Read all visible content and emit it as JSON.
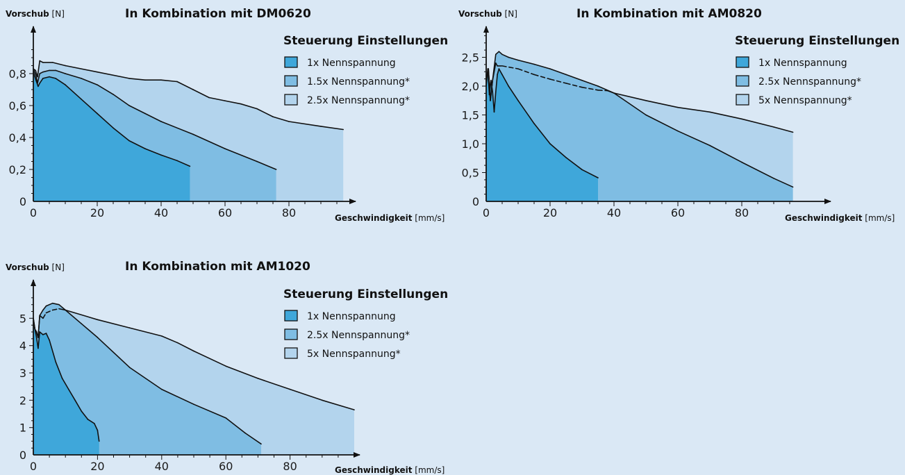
{
  "chart_data": [
    {
      "type": "area",
      "title": "In Kombination mit DM0620",
      "ylabel_bold": "Vorschub",
      "ylabel_unit": "[N]",
      "xlabel_bold": "Geschwindigkeit",
      "xlabel_unit": "[mm/s]",
      "xlim": [
        0,
        100
      ],
      "ylim": [
        0,
        1.0
      ],
      "xticks": [
        0,
        20,
        40,
        60,
        80
      ],
      "xtick_labels": [
        "0",
        "20",
        "40",
        "60",
        "80"
      ],
      "yticks": [
        0,
        0.2,
        0.4,
        0.6,
        0.8
      ],
      "ytick_labels": [
        "0",
        "0,2",
        "0,4",
        "0,6",
        "0,8"
      ],
      "legend_title": "Steuerung Einstellungen",
      "legend_position": "top-right",
      "series": [
        {
          "name": "1x Nennspannung",
          "color": "#3fa7da",
          "dashed_ranges": [],
          "points": [
            [
              0,
              0.81
            ],
            [
              0.8,
              0.76
            ],
            [
              1.5,
              0.72
            ],
            [
              2,
              0.74
            ],
            [
              3,
              0.77
            ],
            [
              5,
              0.78
            ],
            [
              7,
              0.77
            ],
            [
              10,
              0.73
            ],
            [
              15,
              0.64
            ],
            [
              20,
              0.55
            ],
            [
              25,
              0.46
            ],
            [
              30,
              0.38
            ],
            [
              35,
              0.33
            ],
            [
              40,
              0.29
            ],
            [
              45,
              0.255
            ],
            [
              49,
              0.22
            ]
          ]
        },
        {
          "name": "1.5x Nennspannung*",
          "color": "#7fbde3",
          "dashed_ranges": [],
          "points": [
            [
              0,
              0.83
            ],
            [
              0.8,
              0.79
            ],
            [
              1.3,
              0.74
            ],
            [
              2,
              0.8
            ],
            [
              3,
              0.81
            ],
            [
              5,
              0.82
            ],
            [
              7,
              0.82
            ],
            [
              10,
              0.8
            ],
            [
              15,
              0.77
            ],
            [
              20,
              0.73
            ],
            [
              25,
              0.67
            ],
            [
              30,
              0.6
            ],
            [
              35,
              0.55
            ],
            [
              40,
              0.5
            ],
            [
              50,
              0.42
            ],
            [
              60,
              0.33
            ],
            [
              70,
              0.25
            ],
            [
              76,
              0.2
            ]
          ]
        },
        {
          "name": "2.5x Nennspannung*",
          "color": "#b3d4ed",
          "dashed_ranges": [],
          "points": [
            [
              0,
              0.83
            ],
            [
              0.7,
              0.82
            ],
            [
              1.3,
              0.78
            ],
            [
              2,
              0.88
            ],
            [
              3,
              0.87
            ],
            [
              6,
              0.87
            ],
            [
              10,
              0.85
            ],
            [
              20,
              0.81
            ],
            [
              30,
              0.77
            ],
            [
              35,
              0.76
            ],
            [
              40,
              0.76
            ],
            [
              45,
              0.75
            ],
            [
              50,
              0.7
            ],
            [
              55,
              0.65
            ],
            [
              60,
              0.63
            ],
            [
              65,
              0.61
            ],
            [
              70,
              0.58
            ],
            [
              75,
              0.53
            ],
            [
              80,
              0.5
            ],
            [
              90,
              0.47
            ],
            [
              97,
              0.45
            ]
          ]
        }
      ]
    },
    {
      "type": "area",
      "title": "In Kombination mit AM0820",
      "ylabel_bold": "Vorschub",
      "ylabel_unit": "[N]",
      "xlabel_bold": "Geschwindigkeit",
      "xlabel_unit": "[mm/s]",
      "xlim": [
        0,
        100
      ],
      "ylim": [
        0,
        3.0
      ],
      "xticks": [
        0,
        20,
        40,
        60,
        80
      ],
      "xtick_labels": [
        "0",
        "20",
        "40",
        "60",
        "80"
      ],
      "yticks": [
        0,
        0.5,
        1.0,
        1.5,
        2.0,
        2.5
      ],
      "ytick_labels": [
        "0",
        "0,5",
        "1,0",
        "1,5",
        "2,0",
        "2,5"
      ],
      "legend_title": "Steuerung Einstellungen",
      "legend_position": "top-right",
      "series": [
        {
          "name": "1x Nennspannung",
          "color": "#3fa7da",
          "dashed_ranges": [],
          "points": [
            [
              0,
              2.0
            ],
            [
              0.5,
              2.3
            ],
            [
              1,
              1.85
            ],
            [
              1.5,
              2.1
            ],
            [
              2,
              1.9
            ],
            [
              2.5,
              1.55
            ],
            [
              3,
              1.9
            ],
            [
              3.5,
              2.2
            ],
            [
              4,
              2.3
            ],
            [
              5,
              2.2
            ],
            [
              7,
              2.0
            ],
            [
              10,
              1.75
            ],
            [
              15,
              1.35
            ],
            [
              20,
              1.0
            ],
            [
              25,
              0.76
            ],
            [
              30,
              0.55
            ],
            [
              35,
              0.41
            ]
          ]
        },
        {
          "name": "2.5x Nennspannung*",
          "color": "#7fbde3",
          "dashed_ranges": [],
          "points": [
            [
              0,
              2.1
            ],
            [
              0.7,
              2.3
            ],
            [
              1.3,
              1.75
            ],
            [
              2,
              2.1
            ],
            [
              3,
              2.55
            ],
            [
              4,
              2.6
            ],
            [
              5,
              2.55
            ],
            [
              7,
              2.5
            ],
            [
              10,
              2.45
            ],
            [
              15,
              2.38
            ],
            [
              20,
              2.3
            ],
            [
              25,
              2.2
            ],
            [
              30,
              2.1
            ],
            [
              35,
              2.0
            ],
            [
              40,
              1.88
            ],
            [
              50,
              1.5
            ],
            [
              60,
              1.22
            ],
            [
              70,
              0.97
            ],
            [
              80,
              0.68
            ],
            [
              90,
              0.4
            ],
            [
              96,
              0.25
            ]
          ]
        },
        {
          "name": "5x Nennspannung*",
          "color": "#b3d4ed",
          "dashed_ranges": [
            [
              3.5,
              38
            ]
          ],
          "points": [
            [
              0,
              2.1
            ],
            [
              0.7,
              2.3
            ],
            [
              1.3,
              1.75
            ],
            [
              2,
              2.1
            ],
            [
              3,
              2.4
            ],
            [
              3.5,
              2.35
            ],
            [
              5,
              2.35
            ],
            [
              10,
              2.3
            ],
            [
              15,
              2.2
            ],
            [
              20,
              2.12
            ],
            [
              25,
              2.05
            ],
            [
              30,
              1.98
            ],
            [
              35,
              1.93
            ],
            [
              38,
              1.92
            ],
            [
              40,
              1.88
            ],
            [
              50,
              1.75
            ],
            [
              60,
              1.63
            ],
            [
              70,
              1.55
            ],
            [
              80,
              1.43
            ],
            [
              90,
              1.29
            ],
            [
              96,
              1.2
            ]
          ]
        }
      ]
    },
    {
      "type": "area",
      "title": "In Kombination mit AM1020",
      "ylabel_bold": "Vorschub",
      "ylabel_unit": "[N]",
      "xlabel_bold": "Geschwindigkeit",
      "xlabel_unit": "[mm/s]",
      "xlim": [
        0,
        100
      ],
      "ylim": [
        0,
        6.0
      ],
      "xticks": [
        0,
        20,
        40,
        60,
        80
      ],
      "xtick_labels": [
        "0",
        "20",
        "40",
        "60",
        "80"
      ],
      "yticks": [
        0,
        1,
        2,
        3,
        4,
        5
      ],
      "ytick_labels": [
        "0",
        "1",
        "2",
        "3",
        "4",
        "5"
      ],
      "legend_title": "Steuerung Einstellungen",
      "legend_position": "top-right",
      "series": [
        {
          "name": "1x Nennspannung",
          "color": "#3fa7da",
          "dashed_ranges": [],
          "points": [
            [
              0,
              4.9
            ],
            [
              0.5,
              4.6
            ],
            [
              1,
              4.3
            ],
            [
              1.5,
              3.9
            ],
            [
              2,
              4.5
            ],
            [
              3,
              4.4
            ],
            [
              4,
              4.45
            ],
            [
              5,
              4.2
            ],
            [
              7,
              3.4
            ],
            [
              9,
              2.8
            ],
            [
              11,
              2.4
            ],
            [
              13,
              2.0
            ],
            [
              15,
              1.6
            ],
            [
              17,
              1.3
            ],
            [
              19,
              1.15
            ],
            [
              20,
              0.9
            ],
            [
              20.5,
              0.5
            ]
          ]
        },
        {
          "name": "2.5x Nennspannung*",
          "color": "#7fbde3",
          "dashed_ranges": [],
          "points": [
            [
              0,
              5.0
            ],
            [
              0.5,
              4.6
            ],
            [
              1,
              4.5
            ],
            [
              1.5,
              4.3
            ],
            [
              2,
              5.1
            ],
            [
              3,
              5.3
            ],
            [
              4,
              5.45
            ],
            [
              6,
              5.55
            ],
            [
              8,
              5.5
            ],
            [
              10,
              5.3
            ],
            [
              15,
              4.8
            ],
            [
              20,
              4.3
            ],
            [
              30,
              3.2
            ],
            [
              40,
              2.4
            ],
            [
              50,
              1.85
            ],
            [
              60,
              1.35
            ],
            [
              66,
              0.8
            ],
            [
              71,
              0.4
            ]
          ]
        },
        {
          "name": "5x Nennspannung*",
          "color": "#b3d4ed",
          "dashed_ranges": [
            [
              3,
              8
            ]
          ],
          "points": [
            [
              0,
              5.0
            ],
            [
              0.5,
              4.6
            ],
            [
              1,
              4.5
            ],
            [
              1.5,
              4.3
            ],
            [
              2,
              5.1
            ],
            [
              3,
              5.0
            ],
            [
              4,
              5.2
            ],
            [
              6,
              5.3
            ],
            [
              8,
              5.35
            ],
            [
              10,
              5.3
            ],
            [
              20,
              4.95
            ],
            [
              30,
              4.65
            ],
            [
              40,
              4.35
            ],
            [
              45,
              4.1
            ],
            [
              50,
              3.8
            ],
            [
              60,
              3.25
            ],
            [
              70,
              2.8
            ],
            [
              80,
              2.4
            ],
            [
              90,
              2.0
            ],
            [
              100,
              1.65
            ]
          ]
        }
      ]
    }
  ]
}
